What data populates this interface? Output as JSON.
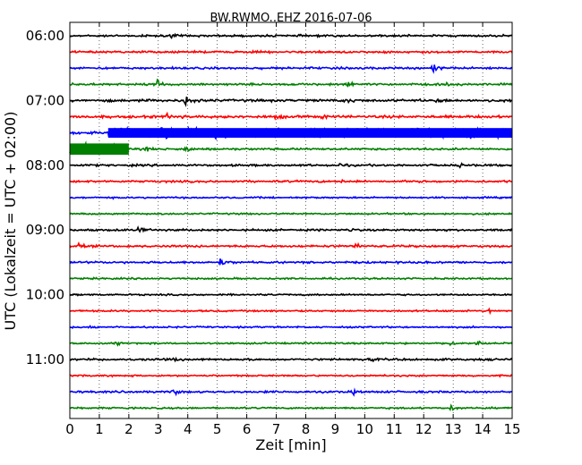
{
  "chart_data": {
    "type": "line",
    "title": "BW.RWMO..EHZ 2016-07-06",
    "xlabel": "Zeit  [min]",
    "ylabel": "UTC (Lokalzeit = UTC + 02:00)",
    "xlim": [
      0,
      15
    ],
    "x_ticks": [
      "0",
      "1",
      "2",
      "3",
      "4",
      "5",
      "6",
      "7",
      "8",
      "9",
      "10",
      "11",
      "12",
      "13",
      "14",
      "15"
    ],
    "y_tick_labels": [
      "06:00",
      "07:00",
      "08:00",
      "09:00",
      "10:00",
      "11:00"
    ],
    "grid": "vertical dotted",
    "trace_interval_min": 15,
    "trace_colors": [
      "#000000",
      "#ff0000",
      "#0000ff",
      "#008000"
    ],
    "traces": [
      {
        "start": "06:00",
        "color": "#000000",
        "noise": 1.5,
        "events": [
          {
            "t": 3.4,
            "amp": 3
          }
        ]
      },
      {
        "start": "06:15",
        "color": "#ff0000",
        "noise": 1.5,
        "events": [
          {
            "t": 8.2,
            "amp": 2
          }
        ]
      },
      {
        "start": "06:30",
        "color": "#0000ff",
        "noise": 1.5,
        "events": [
          {
            "t": 12.3,
            "amp": 8
          },
          {
            "t": 8.0,
            "amp": 2
          }
        ]
      },
      {
        "start": "06:45",
        "color": "#008000",
        "noise": 1.5,
        "events": [
          {
            "t": 2.95,
            "amp": 11
          },
          {
            "t": 9.4,
            "amp": 5
          },
          {
            "t": 12.8,
            "amp": 4
          }
        ]
      },
      {
        "start": "07:00",
        "color": "#000000",
        "noise": 1.8,
        "events": [
          {
            "t": 3.9,
            "amp": 12
          },
          {
            "t": 9.4,
            "amp": 7
          },
          {
            "t": 12.4,
            "amp": 4
          }
        ]
      },
      {
        "start": "07:15",
        "color": "#ff0000",
        "noise": 1.8,
        "events": [
          {
            "t": 3.3,
            "amp": 6
          },
          {
            "t": 5.3,
            "amp": 3
          },
          {
            "t": 7.0,
            "amp": 4
          },
          {
            "t": 8.5,
            "amp": 3
          },
          {
            "t": 14.3,
            "amp": 3
          }
        ]
      },
      {
        "start": "07:30",
        "color": "#0000ff",
        "noise": 1.8,
        "events": [
          {
            "t": 3.1,
            "amp": 12
          }
        ],
        "burst": {
          "from": 1.3,
          "to": 15,
          "amp": 6
        }
      },
      {
        "start": "07:45",
        "color": "#008000",
        "noise": 1.5,
        "events": [
          {
            "t": 3.9,
            "amp": 7
          },
          {
            "t": 2.6,
            "amp": 4
          }
        ],
        "burst": {
          "from": 0,
          "to": 2.0,
          "amp": 7
        }
      },
      {
        "start": "08:00",
        "color": "#000000",
        "noise": 1.5,
        "events": [
          {
            "t": 9.1,
            "amp": 4
          },
          {
            "t": 13.2,
            "amp": 3
          }
        ]
      },
      {
        "start": "08:15",
        "color": "#ff0000",
        "noise": 1.5,
        "events": [
          {
            "t": 9.2,
            "amp": 2
          }
        ]
      },
      {
        "start": "08:30",
        "color": "#0000ff",
        "noise": 1.2,
        "events": []
      },
      {
        "start": "08:45",
        "color": "#008000",
        "noise": 1.2,
        "events": []
      },
      {
        "start": "09:00",
        "color": "#000000",
        "noise": 1.5,
        "events": [
          {
            "t": 2.35,
            "amp": 7
          },
          {
            "t": 9.5,
            "amp": 3
          },
          {
            "t": 14.9,
            "amp": 3
          }
        ]
      },
      {
        "start": "09:15",
        "color": "#ff0000",
        "noise": 1.5,
        "events": [
          {
            "t": 9.7,
            "amp": 7
          },
          {
            "t": 0.3,
            "amp": 3
          }
        ]
      },
      {
        "start": "09:30",
        "color": "#0000ff",
        "noise": 1.5,
        "events": [
          {
            "t": 5.1,
            "amp": 6
          }
        ]
      },
      {
        "start": "09:45",
        "color": "#008000",
        "noise": 1.2,
        "events": []
      },
      {
        "start": "10:00",
        "color": "#000000",
        "noise": 1.2,
        "events": []
      },
      {
        "start": "10:15",
        "color": "#ff0000",
        "noise": 1.2,
        "events": [
          {
            "t": 14.2,
            "amp": 4
          }
        ]
      },
      {
        "start": "10:30",
        "color": "#0000ff",
        "noise": 1.2,
        "events": [
          {
            "t": 0.7,
            "amp": 3
          }
        ]
      },
      {
        "start": "10:45",
        "color": "#008000",
        "noise": 1.2,
        "events": [
          {
            "t": 1.5,
            "amp": 4
          },
          {
            "t": 12.9,
            "amp": 5
          },
          {
            "t": 13.8,
            "amp": 5
          }
        ]
      },
      {
        "start": "11:00",
        "color": "#000000",
        "noise": 1.5,
        "events": [
          {
            "t": 3.5,
            "amp": 3
          },
          {
            "t": 10.2,
            "amp": 3
          },
          {
            "t": 14.9,
            "amp": 3
          }
        ]
      },
      {
        "start": "11:15",
        "color": "#ff0000",
        "noise": 1.2,
        "events": []
      },
      {
        "start": "11:30",
        "color": "#0000ff",
        "noise": 1.5,
        "events": [
          {
            "t": 3.5,
            "amp": 5
          },
          {
            "t": 9.6,
            "amp": 3
          }
        ]
      },
      {
        "start": "11:45",
        "color": "#008000",
        "noise": 1.2,
        "events": [
          {
            "t": 12.9,
            "amp": 4
          }
        ]
      }
    ]
  }
}
